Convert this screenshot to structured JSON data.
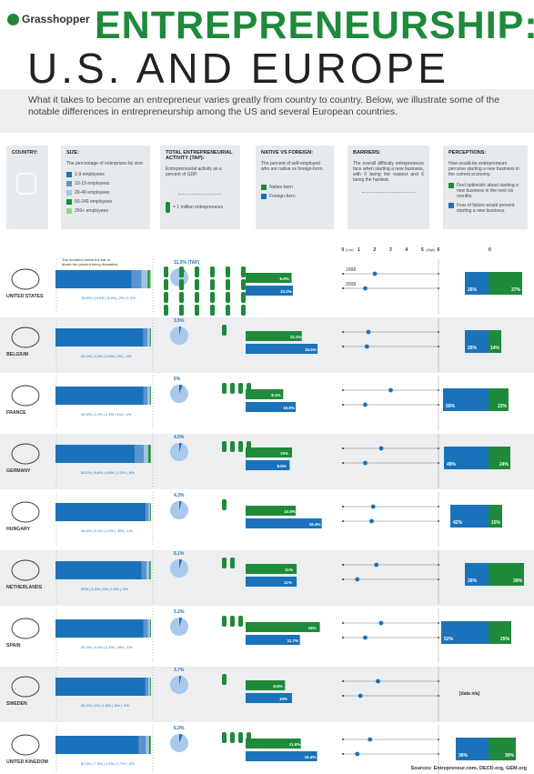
{
  "header": {
    "brand": "Grasshopper",
    "title": "ENTREPRENEURSHIP:",
    "subtitle": "U.S. AND EUROPE",
    "intro": "What it takes to become an entrepreneur varies greatly from country to country. Below, we illustrate some of the notable differences in entrepreneurship among the US and several European countries."
  },
  "columns": {
    "country": {
      "title": "COUNTRY:"
    },
    "size": {
      "title": "SIZE:",
      "desc": "The percentage of enterprises by size:",
      "legend": [
        "1-9 employees",
        "10-19 employees",
        "20-49 employees",
        "50-249 employees",
        "250+ employees"
      ]
    },
    "tea": {
      "title": "TOTAL ENTREPRENEURIAL ACTIVITY (TAP):",
      "desc": "Entrepreneurial activity as a percent of GDP.",
      "legend": "= 1 million entrepreneurs"
    },
    "native": {
      "title": "NATIVE VS FOREIGN:",
      "desc": "The percent of self-employed who are native vs foreign-born.",
      "legend": [
        "Native-born",
        "Foreign-born"
      ]
    },
    "barriers": {
      "title": "BARRIERS:",
      "desc": "The overall difficulty entrepreneurs face when starting a new business, with 0 being the easiest and 6 being the hardest.",
      "scale": [
        "0",
        "1",
        "2",
        "3",
        "4",
        "5",
        "6"
      ],
      "low": "(Low)",
      "high": "(High)",
      "years": [
        "1998",
        "2008"
      ]
    },
    "perceptions": {
      "title": "PERCEPTIONS:",
      "desc": "How would-be entrepreneurs perceive starting a new business in the current economy.",
      "legend": [
        "Feel optimistic about starting a new business in the next six months.",
        "Fear of failure would prevent starting a new business."
      ],
      "zero": "0"
    }
  },
  "size_note": "The numbers below the bar indicate the percent being illustrated",
  "colors": {
    "s1": "#1a72ba",
    "s2": "#5b93cf",
    "s3": "#9ec3e6",
    "s4": "#1e8a3a",
    "s5": "#9bd08d",
    "green": "#1e8a3a",
    "blue": "#1a72ba",
    "pie": "#a9c9ea"
  },
  "chart_data": {
    "type": "table",
    "countries": [
      {
        "name": "UNITED STATES",
        "size": [
          78.9,
          10.5,
          6.4,
          2.0,
          1.4
        ],
        "size_labels": "78.9% | 10.5% | 6.4% | 2% | 1.4%",
        "tea": "11.3% (TAP)",
        "tea_pct": 11.3,
        "figures": 24,
        "native": 9.9,
        "native_label": "9.9%",
        "foreign": 10.2,
        "foreign_label": "10.2%",
        "b1998": 2.0,
        "b2008": 1.4,
        "optimistic": 37,
        "opt_label": "37%",
        "fear": 26,
        "fear_label": "26%"
      },
      {
        "name": "BELGIUM",
        "size": [
          92.2,
          4.2,
          2.5,
          1.0,
          0.2
        ],
        "size_labels": "92.2% | 4.2% | 2.5% | 1% | .2%",
        "tea": "3.5%",
        "tea_pct": 3.5,
        "figures": 1,
        "native": 12.1,
        "native_label": "12.1%",
        "foreign": 15.5,
        "foreign_label": "15.5%",
        "b1998": 1.6,
        "b2008": 1.5,
        "optimistic": 14,
        "opt_label": "14%",
        "fear": 26,
        "fear_label": "26%"
      },
      {
        "name": "FRANCE",
        "size": [
          92.3,
          4.1,
          2.4,
          1.0,
          0.2
        ],
        "size_labels": "92.3% | 4.1% | 2.4% | 1% | .2%",
        "tea": "6%",
        "tea_pct": 6,
        "figures": 4,
        "native": 8.1,
        "native_label": "8.1%",
        "foreign": 10.8,
        "foreign_label": "10.8%",
        "b1998": 3.0,
        "b2008": 1.4,
        "optimistic": 22,
        "opt_label": "22%",
        "fear": 50,
        "fear_label": "50%"
      },
      {
        "name": "GERMANY",
        "size": [
          83.1,
          9.6,
          4.8,
          2.3,
          0.5
        ],
        "size_labels": "83.1% | 9.6% | 4.8% | 2.3% | .5%",
        "tea": "4.5%",
        "tea_pct": 4.5,
        "figures": 4,
        "native": 10,
        "native_label": "10%",
        "foreign": 9.5,
        "foreign_label": "9.5%",
        "b1998": 2.4,
        "b2008": 1.4,
        "optimistic": 24,
        "opt_label": "24%",
        "fear": 49,
        "fear_label": "49%"
      },
      {
        "name": "HUNGARY",
        "size": [
          94.4,
          3.1,
          1.6,
          0.8,
          0.1
        ],
        "size_labels": "94.4% | 3.1% | 1.6% | .8% | .1%",
        "tea": "4.3%",
        "tea_pct": 4.3,
        "figures": 1,
        "native": 10.8,
        "native_label": "10.8%",
        "foreign": 16.4,
        "foreign_label": "16.4%",
        "b1998": 1.9,
        "b2008": 1.8,
        "optimistic": 15,
        "opt_label": "15%",
        "fear": 42,
        "fear_label": "42%"
      },
      {
        "name": "NETHERLANDS",
        "size": [
          90,
          5.3,
          3,
          1.4,
          0.3
        ],
        "size_labels": "90% | 5.3% | 3% | 1.4% | .3%",
        "tea": "5.1%",
        "tea_pct": 5.1,
        "figures": 2,
        "native": 11,
        "native_label": "11%",
        "foreign": 11,
        "foreign_label": "11%",
        "b1998": 2.1,
        "b2008": 0.9,
        "optimistic": 39,
        "opt_label": "39%",
        "fear": 26,
        "fear_label": "26%"
      },
      {
        "name": "SPAIN",
        "size": [
          92.2,
          4.4,
          2.4,
          0.8,
          0.1
        ],
        "size_labels": "92.2% | 4.4% | 2.4% | .8% | .1%",
        "tea": "5.2%",
        "tea_pct": 5.2,
        "figures": 3,
        "native": 16,
        "native_label": "16%",
        "foreign": 11.7,
        "foreign_label": "11.7%",
        "b1998": 2.4,
        "b2008": 1.4,
        "optimistic": 25,
        "opt_label": "25%",
        "fear": 52,
        "fear_label": "52%"
      },
      {
        "name": "SWEDEN",
        "size": [
          94.2,
          3,
          1.8,
          0.8,
          0.2
        ],
        "size_labels": "94.2% | 3% | 1.8% | .8% | .2%",
        "tea": "3.7%",
        "tea_pct": 3.7,
        "figures": 1,
        "native": 8.5,
        "native_label": "8.5%",
        "foreign": 10,
        "foreign_label": "10%",
        "b1998": 2.2,
        "b2008": 1.1,
        "optimistic": null,
        "opt_label": "",
        "fear": null,
        "fear_label": "",
        "na": "[data n/a]"
      },
      {
        "name": "UNITED KINGDOM",
        "size": [
          87.5,
          7.5,
          3.2,
          1.7,
          0.4
        ],
        "size_labels": "87.5% | 7.5% | 3.2% | 1.7% | .4%",
        "tea": "6.3%",
        "tea_pct": 6.3,
        "figures": 4,
        "native": 11.9,
        "native_label": "11.9%",
        "foreign": 15.4,
        "foreign_label": "15.4%",
        "b1998": 1.7,
        "b2008": 0.9,
        "optimistic": 30,
        "opt_label": "30%",
        "fear": 36,
        "fear_label": "36%"
      }
    ]
  },
  "source": "Sources: Entrepreneur.com, OECD.org, GEM.org"
}
